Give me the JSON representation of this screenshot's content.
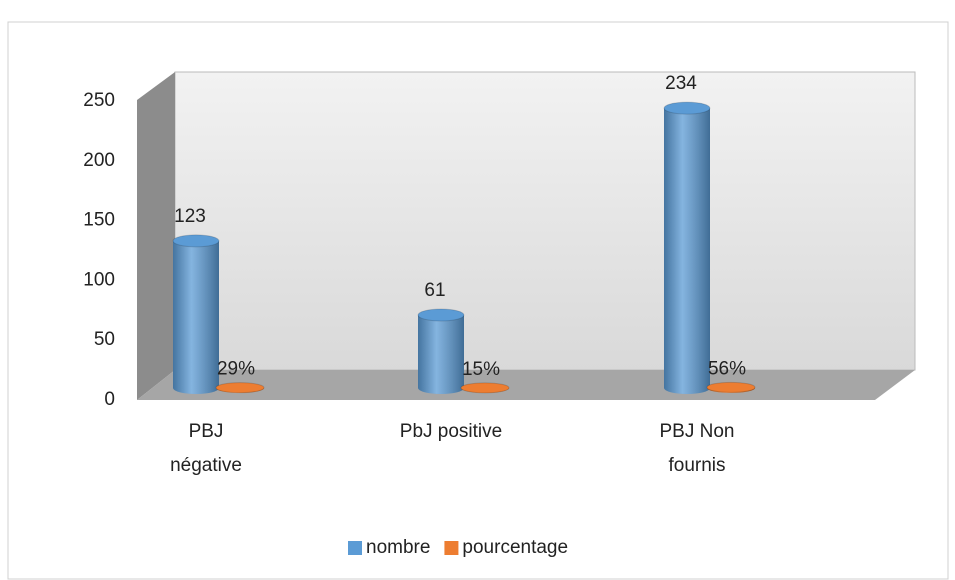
{
  "chart_data": {
    "type": "bar3d",
    "categories": [
      "PBJ négative",
      "PbJ positive",
      "PBJ Non fournis"
    ],
    "series": [
      {
        "name": "nombre",
        "color": "#5b9bd5",
        "values": [
          123,
          61,
          234
        ]
      },
      {
        "name": "pourcentage",
        "color": "#ed7d31",
        "values": [
          0.29,
          0.15,
          0.56
        ],
        "value_labels": [
          "29%",
          "15%",
          "56%"
        ]
      }
    ],
    "ylim": [
      0,
      250
    ],
    "yticks": [
      0,
      50,
      100,
      150,
      200,
      250
    ],
    "grid": false,
    "legend": "bottom"
  }
}
